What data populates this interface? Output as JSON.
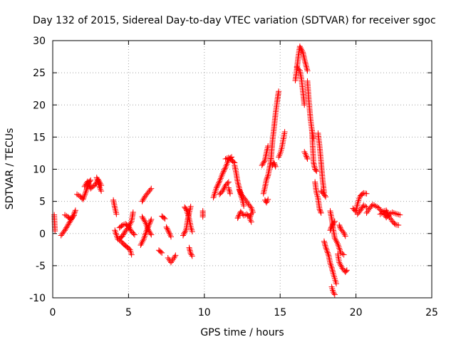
{
  "chart_data": {
    "type": "scatter",
    "title": "Day 132 of 2015, Sidereal Day-to-day VTEC variation (SDTVAR) for receiver sgoc",
    "xlabel": "GPS time / hours",
    "ylabel": "SDTVAR / TECUs",
    "xlim": [
      0,
      25
    ],
    "ylim": [
      -10,
      30
    ],
    "x_ticks": [
      0,
      5,
      10,
      15,
      20,
      25
    ],
    "y_ticks": [
      -10,
      -5,
      0,
      5,
      10,
      15,
      20,
      25,
      30
    ],
    "grid": true,
    "marker": "plus",
    "series_color": "#ff0000",
    "series": [
      {
        "name": "SDTVAR",
        "segments": [
          [
            [
              0.1,
              2.9
            ],
            [
              0.15,
              0.4
            ]
          ],
          [
            [
              0.55,
              -0.3
            ],
            [
              0.8,
              0.5
            ],
            [
              1.0,
              1.3
            ],
            [
              1.2,
              2.1
            ],
            [
              1.4,
              3.0
            ],
            [
              1.5,
              3.6
            ]
          ],
          [
            [
              0.8,
              2.9
            ],
            [
              1.0,
              2.6
            ],
            [
              1.2,
              2.2
            ],
            [
              1.4,
              2.8
            ]
          ],
          [
            [
              1.6,
              6.1
            ],
            [
              1.8,
              5.8
            ],
            [
              2.0,
              5.3
            ],
            [
              2.2,
              6.6
            ],
            [
              2.4,
              8.0
            ],
            [
              2.5,
              8.3
            ]
          ],
          [
            [
              2.1,
              7.3
            ],
            [
              2.3,
              8.1
            ],
            [
              2.5,
              7.0
            ],
            [
              2.8,
              7.6
            ],
            [
              3.0,
              8.4
            ],
            [
              3.2,
              7.5
            ]
          ],
          [
            [
              2.9,
              8.7
            ],
            [
              3.1,
              7.1
            ],
            [
              3.2,
              6.6
            ]
          ],
          [
            [
              4.0,
              5.2
            ],
            [
              4.1,
              4.0
            ],
            [
              4.2,
              3.0
            ]
          ],
          [
            [
              4.1,
              0.5
            ],
            [
              4.3,
              -0.9
            ],
            [
              4.5,
              -1.2
            ],
            [
              4.7,
              -1.7
            ],
            [
              4.9,
              -2.1
            ],
            [
              5.1,
              -2.5
            ],
            [
              5.2,
              -3.3
            ]
          ],
          [
            [
              4.4,
              -0.8
            ],
            [
              4.6,
              -0.4
            ],
            [
              4.8,
              0.4
            ],
            [
              5.0,
              1.0
            ],
            [
              5.2,
              1.9
            ],
            [
              5.3,
              3.3
            ]
          ],
          [
            [
              4.4,
              0.9
            ],
            [
              4.6,
              1.3
            ],
            [
              4.8,
              1.5
            ],
            [
              5.0,
              1.1
            ],
            [
              5.2,
              0.3
            ],
            [
              5.4,
              -0.2
            ]
          ],
          [
            [
              5.8,
              -1.8
            ],
            [
              6.0,
              -0.9
            ],
            [
              6.2,
              0.5
            ],
            [
              6.4,
              1.6
            ],
            [
              6.5,
              2.2
            ]
          ],
          [
            [
              5.9,
              5.0
            ],
            [
              6.1,
              5.8
            ],
            [
              6.3,
              6.4
            ],
            [
              6.5,
              7.0
            ]
          ],
          [
            [
              5.9,
              2.6
            ],
            [
              6.1,
              1.8
            ],
            [
              6.3,
              0.6
            ],
            [
              6.5,
              -0.2
            ]
          ],
          [
            [
              7.0,
              -2.6
            ],
            [
              7.2,
              -3.0
            ]
          ],
          [
            [
              7.2,
              2.7
            ],
            [
              7.4,
              2.3
            ]
          ],
          [
            [
              7.5,
              1.0
            ],
            [
              7.7,
              0.0
            ],
            [
              7.8,
              -0.5
            ]
          ],
          [
            [
              7.6,
              -3.8
            ],
            [
              7.8,
              -4.5
            ],
            [
              8.0,
              -3.8
            ],
            [
              8.1,
              -3.4
            ]
          ],
          [
            [
              8.6,
              -0.3
            ],
            [
              8.8,
              0.6
            ],
            [
              8.9,
              2.1
            ],
            [
              9.0,
              3.2
            ],
            [
              9.1,
              4.2
            ]
          ],
          [
            [
              8.7,
              4.1
            ],
            [
              8.8,
              3.8
            ],
            [
              8.9,
              3.1
            ],
            [
              9.0,
              2.3
            ],
            [
              9.1,
              1.1
            ],
            [
              9.2,
              0.3
            ]
          ],
          [
            [
              9.0,
              -2.2
            ],
            [
              9.1,
              -3.1
            ],
            [
              9.2,
              -3.5
            ]
          ],
          [
            [
              9.9,
              3.5
            ],
            [
              9.9,
              2.6
            ]
          ],
          [
            [
              10.6,
              5.6
            ],
            [
              10.8,
              7.1
            ],
            [
              11.0,
              8.1
            ],
            [
              11.2,
              9.3
            ],
            [
              11.4,
              10.3
            ],
            [
              11.6,
              11.5
            ],
            [
              11.8,
              11.9
            ]
          ],
          [
            [
              11.0,
              6.1
            ],
            [
              11.2,
              6.6
            ],
            [
              11.4,
              7.5
            ],
            [
              11.6,
              8.0
            ]
          ],
          [
            [
              11.4,
              11.6
            ],
            [
              11.6,
              11.8
            ],
            [
              11.8,
              11.4
            ],
            [
              12.0,
              11.0
            ]
          ],
          [
            [
              11.6,
              7.1
            ],
            [
              11.7,
              6.2
            ]
          ],
          [
            [
              12.0,
              10.6
            ],
            [
              12.1,
              9.4
            ],
            [
              12.2,
              8.0
            ],
            [
              12.3,
              7.1
            ],
            [
              12.4,
              6.0
            ],
            [
              12.5,
              5.3
            ],
            [
              12.6,
              4.3
            ]
          ],
          [
            [
              12.2,
              2.4
            ],
            [
              12.4,
              3.4
            ],
            [
              12.6,
              2.8
            ],
            [
              12.8,
              3.0
            ],
            [
              13.0,
              2.5
            ],
            [
              13.1,
              3.1
            ]
          ],
          [
            [
              12.3,
              6.8
            ],
            [
              12.5,
              5.9
            ],
            [
              12.7,
              5.3
            ],
            [
              12.9,
              4.6
            ],
            [
              13.1,
              4.0
            ],
            [
              13.2,
              3.3
            ]
          ],
          [
            [
              13.0,
              2.3
            ],
            [
              13.1,
              1.8
            ]
          ],
          [
            [
              13.8,
              10.6
            ],
            [
              14.0,
              11.4
            ],
            [
              14.1,
              12.6
            ],
            [
              14.2,
              13.6
            ]
          ],
          [
            [
              13.9,
              6.2
            ],
            [
              14.0,
              7.2
            ],
            [
              14.1,
              8.4
            ],
            [
              14.2,
              9.0
            ],
            [
              14.3,
              10.2
            ],
            [
              14.4,
              11.6
            ]
          ],
          [
            [
              14.0,
              5.2
            ],
            [
              14.1,
              4.8
            ],
            [
              14.2,
              5.3
            ]
          ],
          [
            [
              14.4,
              11.7
            ],
            [
              14.5,
              14.5
            ],
            [
              14.6,
              16.5
            ],
            [
              14.7,
              18.7
            ],
            [
              14.8,
              20.5
            ],
            [
              14.9,
              22.1
            ]
          ],
          [
            [
              14.5,
              10.6
            ],
            [
              14.6,
              11.0
            ],
            [
              14.7,
              10.4
            ]
          ],
          [
            [
              14.9,
              11.9
            ],
            [
              15.0,
              12.4
            ],
            [
              15.1,
              13.2
            ],
            [
              15.2,
              14.5
            ],
            [
              15.3,
              15.8
            ]
          ],
          [
            [
              16.0,
              23.8
            ],
            [
              16.1,
              25.5
            ],
            [
              16.2,
              27.6
            ],
            [
              16.3,
              29.1
            ],
            [
              16.5,
              28.2
            ],
            [
              16.6,
              27.1
            ],
            [
              16.8,
              25.3
            ]
          ],
          [
            [
              16.1,
              25.9
            ],
            [
              16.3,
              25.3
            ],
            [
              16.4,
              24.1
            ],
            [
              16.5,
              22.1
            ],
            [
              16.6,
              20.0
            ]
          ],
          [
            [
              16.6,
              12.7
            ],
            [
              16.7,
              12.2
            ],
            [
              16.8,
              11.6
            ]
          ],
          [
            [
              16.8,
              23.7
            ],
            [
              16.9,
              20.5
            ],
            [
              17.0,
              17.8
            ],
            [
              17.1,
              16.0
            ],
            [
              17.2,
              14.8
            ]
          ],
          [
            [
              17.1,
              16.0
            ],
            [
              17.2,
              11.1
            ],
            [
              17.3,
              10.0
            ],
            [
              17.4,
              9.7
            ]
          ],
          [
            [
              17.3,
              8.0
            ],
            [
              17.4,
              6.3
            ],
            [
              17.5,
              5.5
            ],
            [
              17.6,
              3.8
            ],
            [
              17.7,
              3.2
            ]
          ],
          [
            [
              17.5,
              15.6
            ],
            [
              17.6,
              13.6
            ],
            [
              17.7,
              11.1
            ],
            [
              17.8,
              8.3
            ],
            [
              17.9,
              6.4
            ]
          ],
          [
            [
              17.7,
              6.6
            ],
            [
              17.9,
              6.1
            ],
            [
              18.0,
              5.7
            ]
          ],
          [
            [
              17.9,
              -1.2
            ],
            [
              18.0,
              -2.1
            ],
            [
              18.2,
              -3.4
            ],
            [
              18.3,
              -4.6
            ],
            [
              18.4,
              -5.3
            ],
            [
              18.5,
              -6.2
            ],
            [
              18.6,
              -7.0
            ],
            [
              18.7,
              -7.8
            ]
          ],
          [
            [
              18.3,
              0.5
            ],
            [
              18.4,
              1.1
            ],
            [
              18.6,
              1.9
            ]
          ],
          [
            [
              18.3,
              3.5
            ],
            [
              18.4,
              2.3
            ],
            [
              18.5,
              0.7
            ],
            [
              18.6,
              -0.7
            ],
            [
              18.8,
              -1.6
            ],
            [
              18.9,
              -2.3
            ],
            [
              19.0,
              -3.0
            ],
            [
              19.2,
              -3.3
            ]
          ],
          [
            [
              18.4,
              -8.3
            ],
            [
              18.5,
              -9.1
            ],
            [
              18.6,
              -9.5
            ]
          ],
          [
            [
              18.8,
              -3.2
            ],
            [
              18.9,
              -4.5
            ],
            [
              19.1,
              -5.4
            ],
            [
              19.3,
              -6.0
            ],
            [
              19.4,
              -5.7
            ]
          ],
          [
            [
              18.9,
              1.3
            ],
            [
              19.0,
              0.7
            ],
            [
              19.2,
              0.1
            ],
            [
              19.3,
              -0.4
            ]
          ],
          [
            [
              19.8,
              3.9
            ],
            [
              20.0,
              3.4
            ],
            [
              20.1,
              4.6
            ],
            [
              20.2,
              5.4
            ],
            [
              20.3,
              5.9
            ],
            [
              20.5,
              6.3
            ],
            [
              20.7,
              6.2
            ]
          ],
          [
            [
              20.1,
              3.0
            ],
            [
              20.3,
              3.6
            ],
            [
              20.5,
              4.4
            ],
            [
              20.7,
              4.1
            ]
          ],
          [
            [
              20.7,
              3.2
            ],
            [
              20.9,
              3.9
            ],
            [
              21.1,
              4.5
            ]
          ],
          [
            [
              21.2,
              4.4
            ],
            [
              21.5,
              4.0
            ],
            [
              21.7,
              3.4
            ],
            [
              22.0,
              3.6
            ],
            [
              22.2,
              2.6
            ],
            [
              22.4,
              1.9
            ],
            [
              22.6,
              1.4
            ],
            [
              22.8,
              1.3
            ]
          ],
          [
            [
              21.6,
              3.0
            ],
            [
              21.8,
              3.3
            ],
            [
              22.0,
              2.5
            ],
            [
              22.2,
              3.0
            ],
            [
              22.4,
              3.3
            ],
            [
              22.6,
              3.1
            ],
            [
              22.9,
              2.9
            ]
          ]
        ]
      }
    ]
  }
}
